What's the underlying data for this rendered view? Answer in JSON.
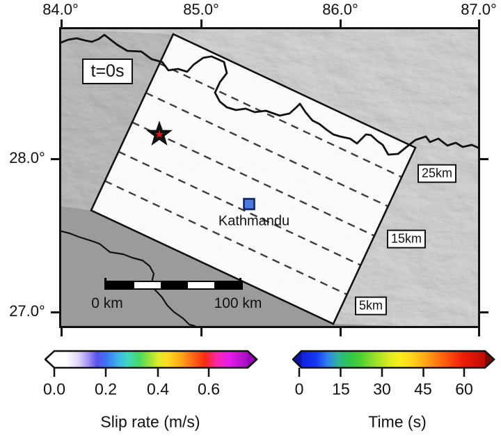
{
  "axes": {
    "top": [
      "84.0°",
      "85.0°",
      "86.0°",
      "87.0°"
    ],
    "left": [
      "28.0°",
      "27.0°"
    ]
  },
  "map": {
    "time_label": "t=0s",
    "city": "Kathmandu",
    "city_marker": "blue-square",
    "epicenter_marker": "red-star",
    "depth_contours": [
      "25km",
      "15km",
      "5km"
    ],
    "scalebar": {
      "start_label": "0 km",
      "end_label": "100 km"
    }
  },
  "colorbars": {
    "slip_rate": {
      "title": "Slip rate (m/s)",
      "ticks": [
        "0.0",
        "0.2",
        "0.4",
        "0.6"
      ],
      "range": [
        0.0,
        0.75
      ],
      "arrow_low": "#ffffff",
      "arrow_high": "#9a00b4",
      "gradient": [
        [
          "0%",
          "#ffffff"
        ],
        [
          "6%",
          "#ffffff"
        ],
        [
          "12%",
          "#e3d9f8"
        ],
        [
          "17%",
          "#ab9cf2"
        ],
        [
          "22%",
          "#5b50ee"
        ],
        [
          "27%",
          "#3c76f2"
        ],
        [
          "33%",
          "#3eb4ea"
        ],
        [
          "38%",
          "#3fd8c0"
        ],
        [
          "44%",
          "#48d964"
        ],
        [
          "49%",
          "#97e038"
        ],
        [
          "54%",
          "#e3ec2a"
        ],
        [
          "59%",
          "#ffd91f"
        ],
        [
          "66%",
          "#ffa319"
        ],
        [
          "72%",
          "#ff6414"
        ],
        [
          "78%",
          "#f62a12"
        ],
        [
          "84%",
          "#fb28a8"
        ],
        [
          "90%",
          "#e81ce8"
        ],
        [
          "100%",
          "#a30fc2"
        ]
      ]
    },
    "time": {
      "title": "Time (s)",
      "ticks": [
        "0",
        "15",
        "30",
        "45",
        "60"
      ],
      "range": [
        0,
        69
      ],
      "arrow_low": "#0d14a8",
      "arrow_high": "#7c0b04",
      "gradient": [
        [
          "0%",
          "#1020dc"
        ],
        [
          "8%",
          "#1437f0"
        ],
        [
          "14%",
          "#2f7ff2"
        ],
        [
          "20%",
          "#2fb49b"
        ],
        [
          "26%",
          "#2ec44d"
        ],
        [
          "33%",
          "#52d232"
        ],
        [
          "40%",
          "#97e028"
        ],
        [
          "47%",
          "#d6ea22"
        ],
        [
          "53%",
          "#f7ef1e"
        ],
        [
          "60%",
          "#ffd51b"
        ],
        [
          "68%",
          "#ffa416"
        ],
        [
          "75%",
          "#ff7110"
        ],
        [
          "81%",
          "#fb480c"
        ],
        [
          "88%",
          "#ee1d07"
        ],
        [
          "100%",
          "#c10b04"
        ]
      ]
    }
  },
  "colors": {
    "star": "#e11212",
    "city_fill": "#4a7ae0",
    "city_stroke": "#0d1f66",
    "frame": "#111111",
    "terrain_base": "#8f8f8f",
    "lowland": "#9b9b9b",
    "fault_plane": "#f5f4f2"
  }
}
